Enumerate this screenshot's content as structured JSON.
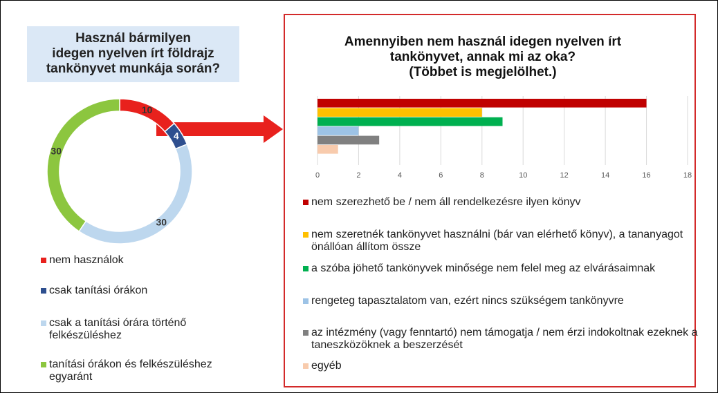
{
  "chart_data": [
    {
      "type": "donut",
      "title": [
        "Használ bármilyen",
        "idegen nyelven írt földrajz",
        "tankönyvet munkája során?"
      ],
      "categories": [
        "nem használok",
        "csak tanítási órákon",
        "csak a tanítási órára történő felkészüléshez",
        "tanítási órákon és felkészüléshez egyaránt"
      ],
      "values": [
        10,
        4,
        30,
        30
      ],
      "colors": [
        "#e8211d",
        "#2e4f8f",
        "#bdd7ee",
        "#8cc63f"
      ]
    },
    {
      "type": "hbar",
      "title": [
        "Amennyiben nem használ idegen nyelven írt",
        "tankönyvet, annak mi az oka?",
        "(Többet is megjelölhet.)"
      ],
      "categories": [
        "nem szerezhető be / nem áll rendelkezésre ilyen könyv",
        "nem szeretnék tankönyvet használni (bár van elérhető könyv), a tananyagot önállóan állítom össze",
        "a szóba jöhető tankönyvek minősége nem felel meg az elvárásaimnak",
        "rengeteg tapasztalatom van, ezért nincs szükségem tankönyvre",
        "az intézmény (vagy fenntartó) nem támogatja / nem érzi indokoltnak ezeknek a taneszközöknek a beszerzését",
        "egyéb"
      ],
      "values": [
        16,
        8,
        9,
        2,
        3,
        1
      ],
      "colors": [
        "#c00000",
        "#ffc000",
        "#00b050",
        "#9dc3e6",
        "#808080",
        "#f8cbad"
      ],
      "xlim": [
        0,
        18
      ],
      "xticks": [
        0,
        2,
        4,
        6,
        8,
        10,
        12,
        14,
        16,
        18
      ],
      "grid": true
    }
  ]
}
